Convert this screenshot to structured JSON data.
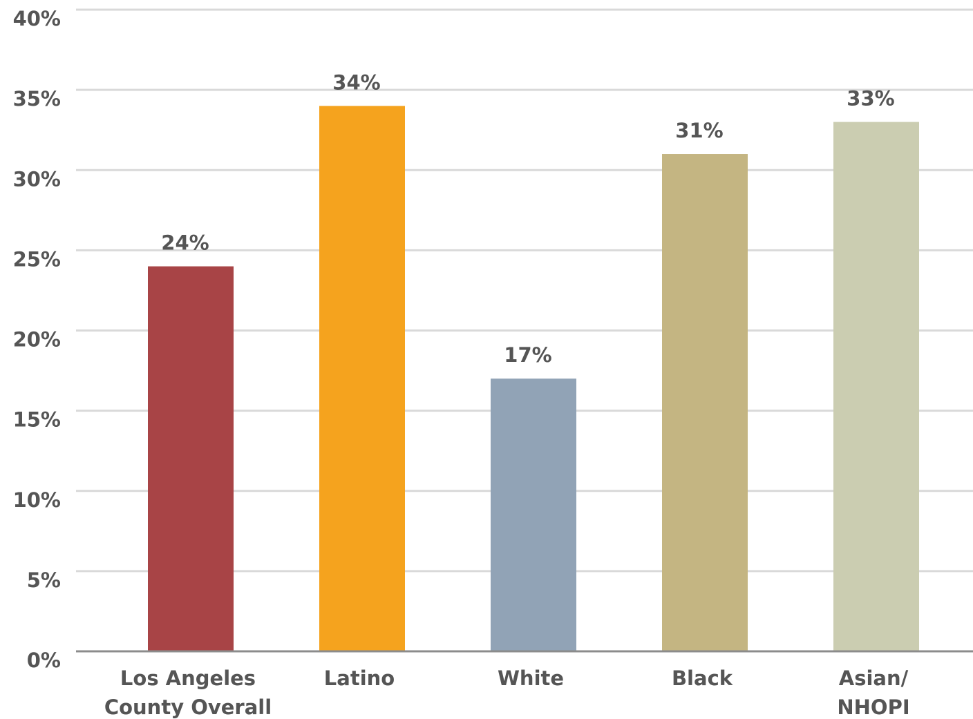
{
  "chart_data": {
    "type": "bar",
    "categories": [
      [
        "Los Angeles",
        "County Overall"
      ],
      [
        "Latino"
      ],
      [
        "White"
      ],
      [
        "Black"
      ],
      [
        "Asian/",
        "NHOPI"
      ]
    ],
    "values": [
      24,
      34,
      17,
      31,
      33
    ],
    "value_labels": [
      "24%",
      "34%",
      "17%",
      "31%",
      "33%"
    ],
    "colors": [
      "#a84446",
      "#f5a31e",
      "#91a3b6",
      "#c4b582",
      "#cbcdb1"
    ],
    "y_ticks": [
      0,
      5,
      10,
      15,
      20,
      25,
      30,
      35,
      40
    ],
    "y_tick_labels": [
      "0%",
      "5%",
      "10%",
      "15%",
      "20%",
      "25%",
      "30%",
      "35%",
      "40%"
    ],
    "ylim": [
      0,
      40
    ],
    "grid": true,
    "legend": "none"
  }
}
